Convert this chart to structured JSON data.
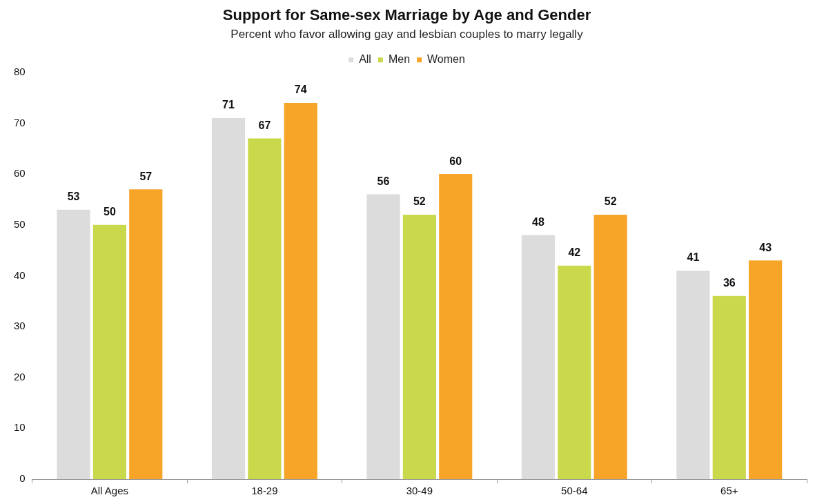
{
  "chart_data": {
    "type": "bar",
    "title": "Support for Same-sex Marriage by Age and Gender",
    "subtitle": "Percent who favor allowing gay and lesbian couples to marry legally",
    "categories": [
      "All Ages",
      "18-29",
      "30-49",
      "50-64",
      "65+"
    ],
    "series": [
      {
        "name": "All",
        "color": "#dcdcdc",
        "values": [
          53,
          71,
          56,
          48,
          41
        ]
      },
      {
        "name": "Men",
        "color": "#c9d94b",
        "values": [
          50,
          67,
          52,
          42,
          36
        ]
      },
      {
        "name": "Women",
        "color": "#f7a528",
        "values": [
          57,
          74,
          60,
          52,
          43
        ]
      }
    ],
    "ylim": [
      0,
      80
    ],
    "yticks": [
      0,
      10,
      20,
      30,
      40,
      50,
      60,
      70,
      80
    ],
    "grid": false,
    "legend": "top",
    "data_labels": true
  }
}
